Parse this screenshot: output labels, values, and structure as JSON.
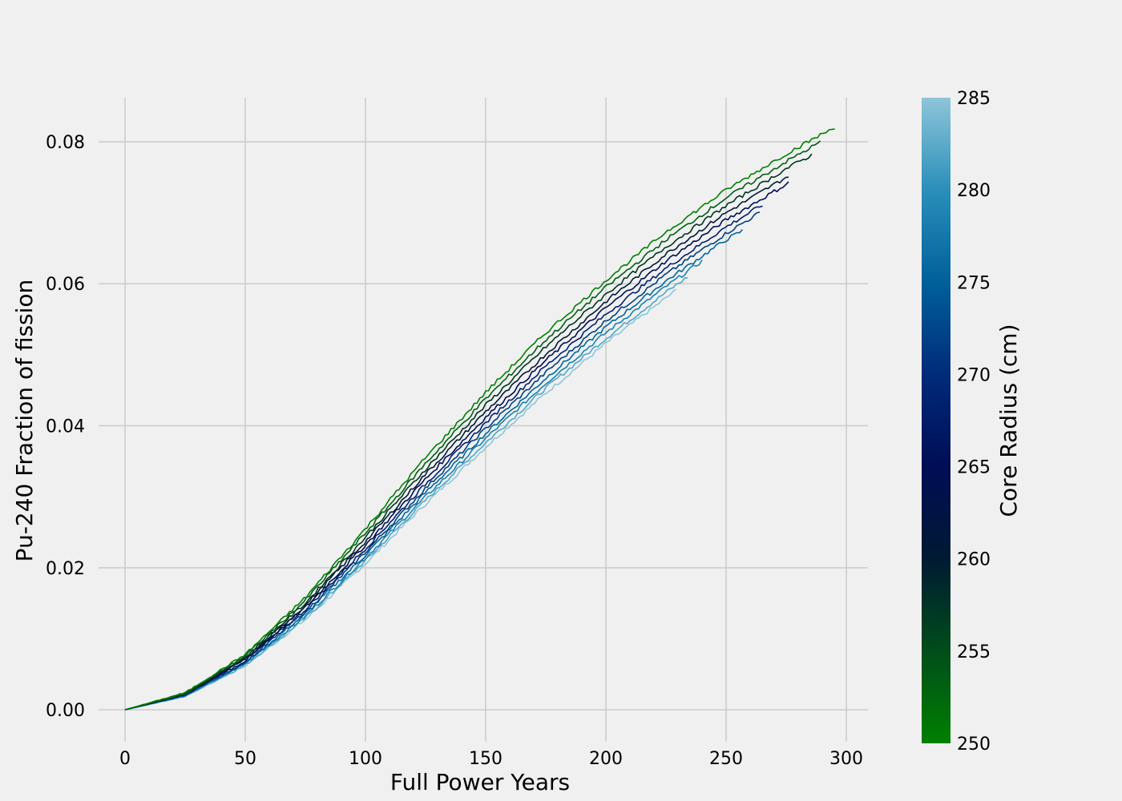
{
  "chart_data": {
    "type": "line",
    "title": "",
    "xlabel": "Full Power Years",
    "ylabel": "Pu-240 Fraction of fission",
    "xlim": [
      -11,
      309
    ],
    "ylim": [
      -0.0045,
      0.0862
    ],
    "xticks": [
      0,
      50,
      100,
      150,
      200,
      250,
      300
    ],
    "yticks": [
      0.0,
      0.02,
      0.04,
      0.06,
      0.08
    ],
    "xtick_labels": [
      "0",
      "50",
      "100",
      "150",
      "200",
      "250",
      "300"
    ],
    "ytick_labels": [
      "0.00",
      "0.02",
      "0.04",
      "0.06",
      "0.08"
    ],
    "grid": true,
    "colorbar": {
      "label": "Core Radius (cm)",
      "min": 250,
      "max": 285,
      "ticks": [
        250,
        255,
        260,
        265,
        270,
        275,
        280,
        285
      ],
      "tick_labels": [
        "250",
        "255",
        "260",
        "265",
        "270",
        "275",
        "280",
        "285"
      ],
      "colormap": [
        "#008000",
        "#004d1a",
        "#001a33",
        "#000d55",
        "#002b7a",
        "#00609a",
        "#2a8fba",
        "#8ec5da"
      ]
    },
    "series": [
      {
        "core_radius": 250,
        "color": "#008000",
        "x": [
          0,
          25,
          50,
          75,
          100,
          125,
          150,
          175,
          200,
          225,
          250,
          275,
          296
        ],
        "y": [
          0,
          0.0024,
          0.0078,
          0.0158,
          0.0255,
          0.0355,
          0.0447,
          0.0531,
          0.0605,
          0.0673,
          0.0732,
          0.0783,
          0.0822
        ]
      },
      {
        "core_radius": 254,
        "color": "#005c16",
        "x": [
          0,
          25,
          50,
          75,
          100,
          125,
          150,
          175,
          200,
          225,
          250,
          275,
          290
        ],
        "y": [
          0,
          0.0023,
          0.0076,
          0.0154,
          0.0249,
          0.0347,
          0.0438,
          0.0521,
          0.0595,
          0.0662,
          0.0721,
          0.0772,
          0.0801
        ]
      },
      {
        "core_radius": 257,
        "color": "#00331f",
        "x": [
          0,
          25,
          50,
          75,
          100,
          125,
          150,
          175,
          200,
          225,
          250,
          275,
          286
        ],
        "y": [
          0,
          0.0023,
          0.0074,
          0.015,
          0.0243,
          0.0339,
          0.0429,
          0.0511,
          0.0585,
          0.0652,
          0.071,
          0.0762,
          0.0782
        ]
      },
      {
        "core_radius": 260,
        "color": "#001a33",
        "x": [
          0,
          25,
          50,
          75,
          100,
          125,
          150,
          175,
          200,
          225,
          250,
          276
        ],
        "y": [
          0,
          0.0022,
          0.0072,
          0.0147,
          0.0237,
          0.0332,
          0.042,
          0.0501,
          0.0575,
          0.0642,
          0.07,
          0.0752
        ]
      },
      {
        "core_radius": 264,
        "color": "#000d55",
        "x": [
          0,
          25,
          50,
          75,
          100,
          125,
          150,
          175,
          200,
          225,
          250,
          276
        ],
        "y": [
          0,
          0.0022,
          0.0071,
          0.0144,
          0.0232,
          0.0325,
          0.0412,
          0.0492,
          0.0566,
          0.0632,
          0.069,
          0.0742
        ]
      },
      {
        "core_radius": 268,
        "color": "#00206e",
        "x": [
          0,
          25,
          50,
          75,
          100,
          125,
          150,
          175,
          200,
          225,
          250,
          266
        ],
        "y": [
          0,
          0.0021,
          0.0069,
          0.0141,
          0.0227,
          0.0318,
          0.0404,
          0.0484,
          0.0557,
          0.0622,
          0.068,
          0.0713
        ]
      },
      {
        "core_radius": 272,
        "color": "#00407f",
        "x": [
          0,
          25,
          50,
          75,
          100,
          125,
          150,
          175,
          200,
          225,
          250,
          264
        ],
        "y": [
          0,
          0.0021,
          0.0067,
          0.0138,
          0.0222,
          0.0312,
          0.0396,
          0.0475,
          0.0548,
          0.0613,
          0.0671,
          0.07
        ]
      },
      {
        "core_radius": 276,
        "color": "#00659d",
        "x": [
          0,
          25,
          50,
          75,
          100,
          125,
          150,
          175,
          200,
          225,
          250,
          257
        ],
        "y": [
          0,
          0.002,
          0.0066,
          0.0135,
          0.0218,
          0.0306,
          0.0389,
          0.0467,
          0.0539,
          0.0604,
          0.0662,
          0.0675
        ]
      },
      {
        "core_radius": 279,
        "color": "#1a82b0",
        "x": [
          0,
          25,
          50,
          75,
          100,
          125,
          150,
          175,
          200,
          225,
          240
        ],
        "y": [
          0,
          0.002,
          0.0065,
          0.0132,
          0.0214,
          0.03,
          0.0382,
          0.046,
          0.0531,
          0.0596,
          0.0632
        ]
      },
      {
        "core_radius": 282,
        "color": "#4da6c8",
        "x": [
          0,
          25,
          50,
          75,
          100,
          125,
          150,
          175,
          200,
          225,
          235
        ],
        "y": [
          0,
          0.0019,
          0.0063,
          0.0129,
          0.021,
          0.0295,
          0.0376,
          0.0453,
          0.0523,
          0.0588,
          0.0612
        ]
      },
      {
        "core_radius": 285,
        "color": "#8ec5da",
        "x": [
          0,
          25,
          50,
          75,
          100,
          125,
          150,
          175,
          200,
          225,
          230
        ],
        "y": [
          0,
          0.0019,
          0.0062,
          0.0127,
          0.0206,
          0.029,
          0.037,
          0.0446,
          0.0516,
          0.058,
          0.0593
        ]
      }
    ]
  }
}
